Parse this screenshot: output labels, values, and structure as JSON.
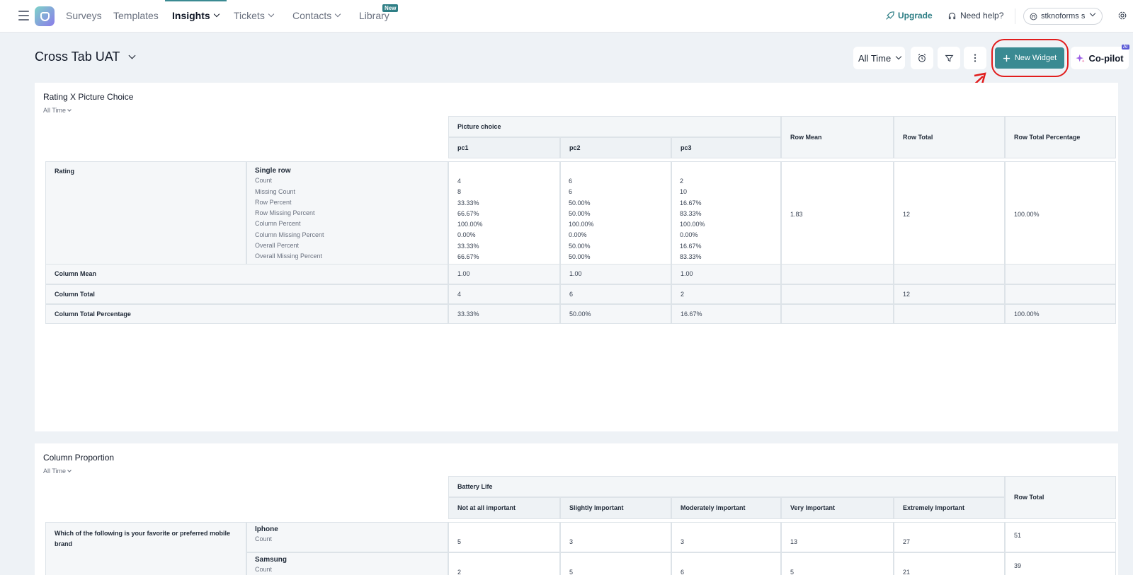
{
  "nav": {
    "items": [
      "Surveys",
      "Templates",
      "Insights",
      "Tickets",
      "Contacts",
      "Library"
    ],
    "new_badge": "New",
    "upgrade": "Upgrade",
    "need_help": "Need help?",
    "account": "stknoforms s"
  },
  "toolbar": {
    "title": "Cross Tab UAT",
    "time_filter": "All Time",
    "new_widget": "New Widget",
    "copilot": "Co-pilot",
    "ai_badge": "AI"
  },
  "widget1": {
    "title": "Rating X Picture Choice",
    "time": "All Time",
    "group_header": "Picture choice",
    "columns": [
      "pc1",
      "pc2",
      "pc3"
    ],
    "extra_headers": [
      "Row Mean",
      "Row Total",
      "Row Total Percentage"
    ],
    "row_label": "Rating",
    "sub_row": "Single row",
    "metrics": [
      "Count",
      "Missing Count",
      "Row Percent",
      "Row Missing Percent",
      "Column Percent",
      "Column Missing Percent",
      "Overall Percent",
      "Overall Missing Percent"
    ],
    "values": {
      "pc1": [
        "4",
        "8",
        "33.33%",
        "66.67%",
        "100.00%",
        "0.00%",
        "33.33%",
        "66.67%"
      ],
      "pc2": [
        "6",
        "6",
        "50.00%",
        "50.00%",
        "100.00%",
        "0.00%",
        "50.00%",
        "50.00%"
      ],
      "pc3": [
        "2",
        "10",
        "16.67%",
        "83.33%",
        "100.00%",
        "0.00%",
        "16.67%",
        "83.33%"
      ]
    },
    "row_mean": "1.83",
    "row_total": "12",
    "row_total_pct": "100.00%",
    "column_mean": {
      "label": "Column Mean",
      "values": [
        "1.00",
        "1.00",
        "1.00"
      ]
    },
    "column_total": {
      "label": "Column Total",
      "values": [
        "4",
        "6",
        "2"
      ],
      "total": "12"
    },
    "column_total_pct": {
      "label": "Column Total Percentage",
      "values": [
        "33.33%",
        "50.00%",
        "16.67%"
      ],
      "pct": "100.00%"
    }
  },
  "widget2": {
    "title": "Column Proportion",
    "time": "All Time",
    "group_header": "Battery Life",
    "columns": [
      "Not at all important",
      "Slightly Important",
      "Moderately Important",
      "Very Important",
      "Extremely Important"
    ],
    "extra_header": "Row Total",
    "row_label": "Which of the following is your favorite or preferred mobile brand",
    "rows": [
      {
        "name": "Iphone",
        "metric": "Count",
        "values": [
          "5",
          "3",
          "3",
          "13",
          "27"
        ],
        "total": "51"
      },
      {
        "name": "Samsung",
        "metric": "Count",
        "values": [
          "2",
          "5",
          "6",
          "5",
          "21"
        ],
        "total": "39"
      }
    ]
  }
}
